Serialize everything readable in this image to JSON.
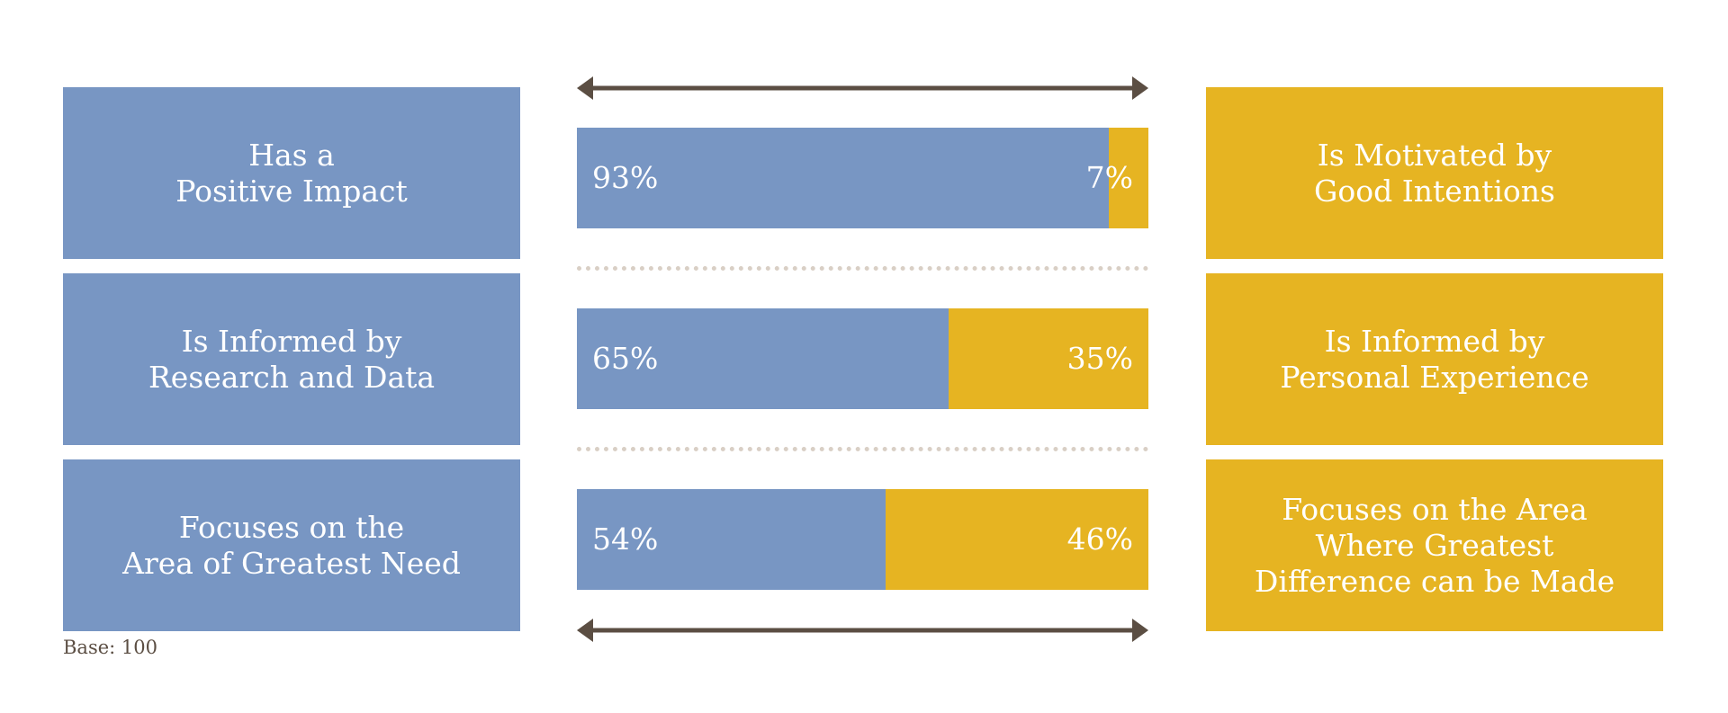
{
  "colors": {
    "blue": "#7896c3",
    "gold": "#e6b422",
    "arrow": "#5b4e43",
    "divider": "#d9cfc5"
  },
  "chart_data": {
    "type": "bar",
    "orientation": "horizontal",
    "stacked": true,
    "normalized": true,
    "categories": [
      "Has a Positive Impact vs Is Motivated by Good Intentions",
      "Is Informed by Research and Data vs Is Informed by Personal Experience",
      "Focuses on the Area of Greatest Need vs Focuses on the Area Where Greatest Difference can be Made"
    ],
    "left_labels": [
      "Has a\nPositive Impact",
      "Is Informed by\nResearch and Data",
      "Focuses on the\nArea of Greatest Need"
    ],
    "right_labels": [
      "Is Motivated by\nGood Intentions",
      "Is Informed by\nPersonal Experience",
      "Focuses on the Area Where Greatest Difference can be Made"
    ],
    "series": [
      {
        "values": [
          93,
          65,
          54
        ],
        "labels": [
          "93%",
          "65%",
          "54%"
        ]
      },
      {
        "values": [
          7,
          35,
          46
        ],
        "labels": [
          "7%",
          "35%",
          "46%"
        ]
      }
    ],
    "xlim": [
      0,
      100
    ],
    "grid": false
  },
  "footnote": "Base: 100"
}
